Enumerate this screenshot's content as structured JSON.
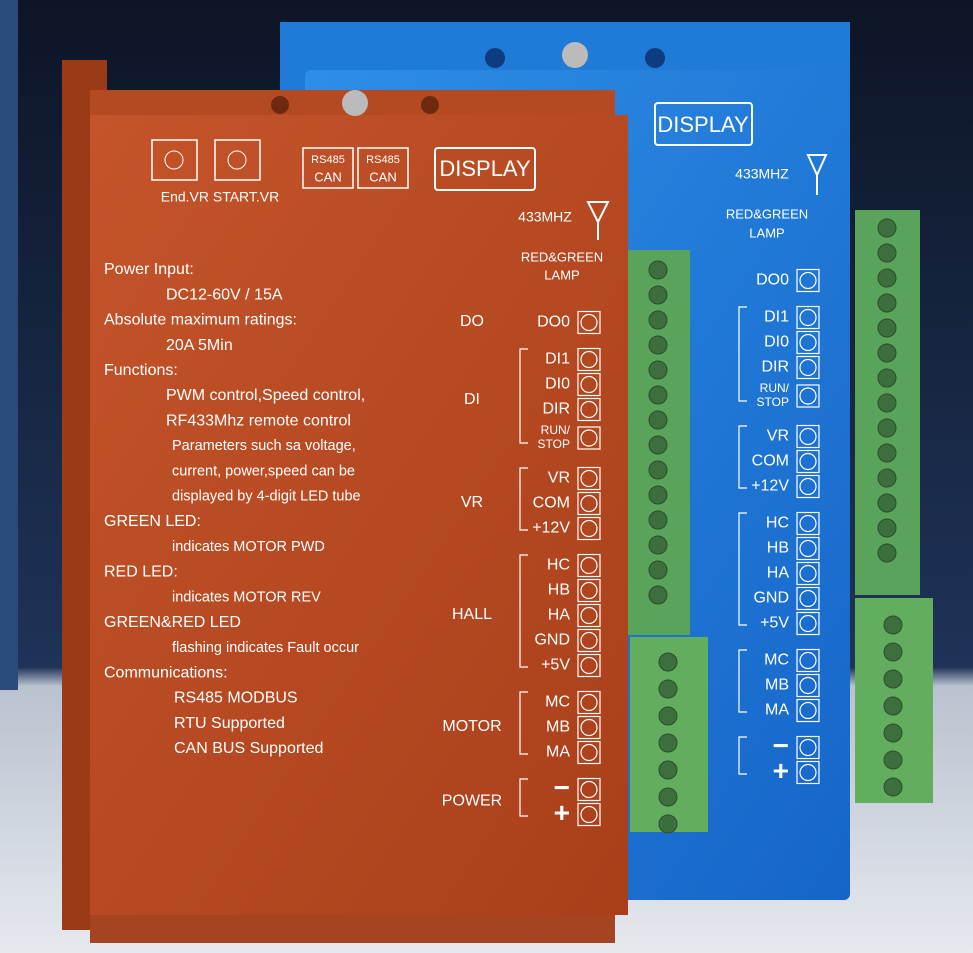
{
  "orange_board": {
    "knob_label": "End.VR START.VR",
    "ports": [
      [
        "RS485",
        "CAN"
      ],
      [
        "RS485",
        "CAN"
      ]
    ],
    "display": "DISPLAY",
    "antenna": "433MHZ",
    "lamp": [
      "RED&GREEN",
      "LAMP"
    ],
    "specs": [
      "Power Input:",
      "DC12-60V / 15A",
      "Absolute maximum ratings:",
      "20A 5Min",
      "Functions:",
      "PWM control,Speed control,",
      "RF433Mhz remote control",
      "Parameters such sa voltage,",
      "current, power,speed can be",
      "displayed by 4-digit LED tube",
      "GREEN LED:",
      "indicates MOTOR PWD",
      "RED LED:",
      "indicates MOTOR REV",
      "GREEN&RED LED",
      "flashing indicates Fault occur",
      "Communications:",
      "RS485 MODBUS",
      "RTU Supported",
      "CAN BUS Supported"
    ],
    "terminals": [
      {
        "group": "DO",
        "pins": [
          [
            "DO0"
          ]
        ]
      },
      {
        "group": "DI",
        "pins": [
          [
            "DI1"
          ],
          [
            "DI0"
          ],
          [
            "DIR"
          ],
          [
            "RUN/",
            "STOP"
          ]
        ]
      },
      {
        "group": "VR",
        "pins": [
          [
            "VR"
          ],
          [
            "COM"
          ],
          [
            "+12V"
          ]
        ]
      },
      {
        "group": "HALL",
        "pins": [
          [
            "HC"
          ],
          [
            "HB"
          ],
          [
            "HA"
          ],
          [
            "GND"
          ],
          [
            "+5V"
          ]
        ]
      },
      {
        "group": "MOTOR",
        "pins": [
          [
            "MC"
          ],
          [
            "MB"
          ],
          [
            "MA"
          ]
        ]
      },
      {
        "group": "POWER",
        "pins": [
          [
            "−"
          ],
          [
            "+"
          ]
        ]
      }
    ]
  },
  "blue_board": {
    "display": "DISPLAY",
    "antenna": "433MHZ",
    "lamp": [
      "RED&GREEN",
      "LAMP"
    ],
    "terminals": [
      {
        "pins": [
          [
            "DO0"
          ]
        ]
      },
      {
        "pins": [
          [
            "DI1"
          ],
          [
            "DI0"
          ],
          [
            "DIR"
          ],
          [
            "RUN/",
            "STOP"
          ]
        ]
      },
      {
        "pins": [
          [
            "VR"
          ],
          [
            "COM"
          ],
          [
            "+12V"
          ]
        ]
      },
      {
        "pins": [
          [
            "HC"
          ],
          [
            "HB"
          ],
          [
            "HA"
          ],
          [
            "GND"
          ],
          [
            "+5V"
          ]
        ]
      },
      {
        "pins": [
          [
            "MC"
          ],
          [
            "MB"
          ],
          [
            "MA"
          ]
        ]
      },
      {
        "pins": [
          [
            "−"
          ],
          [
            "+"
          ]
        ]
      }
    ]
  }
}
